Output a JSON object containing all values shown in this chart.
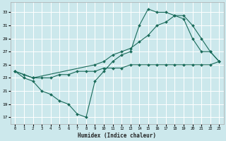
{
  "xlabel": "Humidex (Indice chaleur)",
  "bg_color": "#cce8ec",
  "grid_color": "#ffffff",
  "line_color": "#1a6b5a",
  "xlim": [
    -0.5,
    23.5
  ],
  "ylim": [
    16,
    34.5
  ],
  "yticks": [
    17,
    19,
    21,
    23,
    25,
    27,
    29,
    31,
    33
  ],
  "xticks": [
    0,
    1,
    2,
    3,
    4,
    5,
    6,
    7,
    8,
    9,
    10,
    11,
    12,
    13,
    14,
    15,
    16,
    17,
    18,
    19,
    20,
    21,
    22,
    23
  ],
  "line1_x": [
    0,
    1,
    2,
    3,
    4,
    5,
    6,
    7,
    8,
    9,
    10,
    11,
    12,
    13,
    14,
    15,
    16,
    17,
    18,
    19,
    20,
    21,
    22,
    23
  ],
  "line1_y": [
    24.0,
    23.0,
    22.5,
    21.0,
    20.5,
    19.5,
    19.0,
    17.5,
    17.0,
    22.5,
    24.0,
    25.5,
    26.5,
    27.0,
    31.0,
    33.5,
    33.0,
    33.0,
    32.5,
    32.0,
    29.0,
    27.0,
    27.0,
    25.5
  ],
  "line2_x": [
    0,
    2,
    9,
    10,
    11,
    12,
    13,
    14,
    15,
    16,
    17,
    18,
    19,
    20,
    21,
    22,
    23
  ],
  "line2_y": [
    24.0,
    23.0,
    25.0,
    25.5,
    26.5,
    27.0,
    27.5,
    28.5,
    29.5,
    31.0,
    31.5,
    32.5,
    32.5,
    31.0,
    29.0,
    27.0,
    25.5
  ],
  "line3_x": [
    0,
    1,
    2,
    3,
    4,
    5,
    6,
    7,
    8,
    9,
    10,
    11,
    12,
    13,
    14,
    15,
    16,
    17,
    18,
    19,
    20,
    21,
    22,
    23
  ],
  "line3_y": [
    24.0,
    23.5,
    23.0,
    23.0,
    23.0,
    23.5,
    23.5,
    24.0,
    24.0,
    24.0,
    24.5,
    24.5,
    24.5,
    25.0,
    25.0,
    25.0,
    25.0,
    25.0,
    25.0,
    25.0,
    25.0,
    25.0,
    25.0,
    25.5
  ]
}
